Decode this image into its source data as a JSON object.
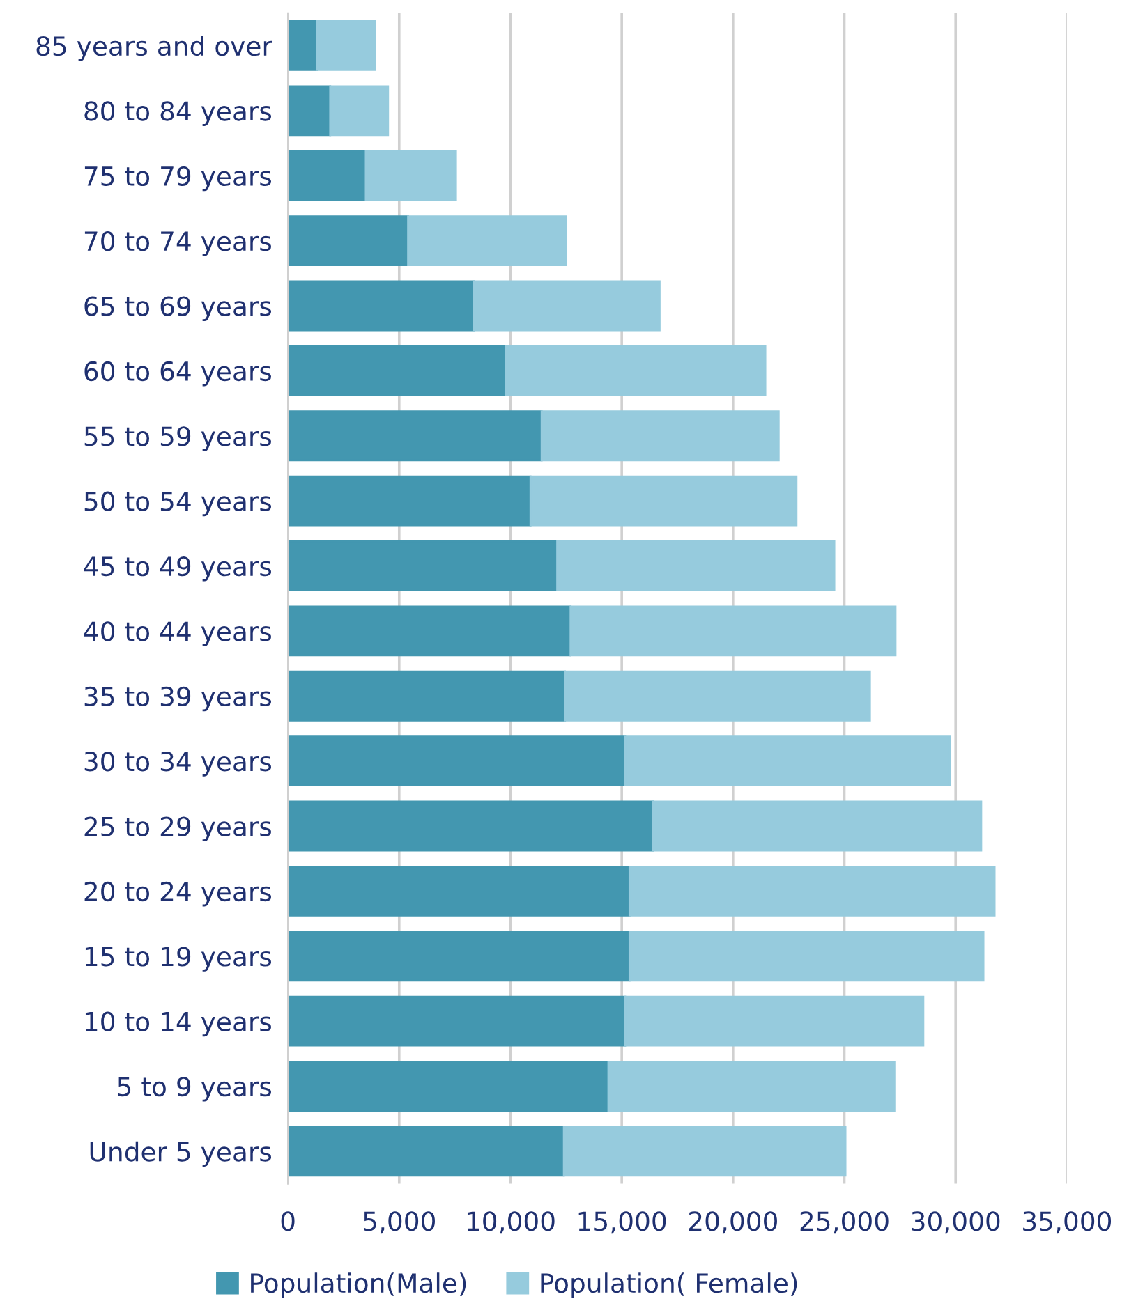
{
  "chart_data": {
    "type": "bar",
    "orientation": "horizontal",
    "stacked": true,
    "categories": [
      "85 years and over",
      "80 to 84 years",
      "75 to 79 years",
      "70 to 74 years",
      "65 to 69 years",
      "60 to 64 years",
      "55 to 59 years",
      "50 to 54 years",
      "45 to 49 years",
      "40 to 44 years",
      "35 to 39 years",
      "30 to 34 years",
      "25 to 29 years",
      "20 to 24 years",
      "15 to 19 years",
      "10 to 14 years",
      "5 to 9 years",
      "Under 5 years"
    ],
    "series": [
      {
        "name": "Population(Male)",
        "color": "#4397b0",
        "values": [
          1300,
          1900,
          3500,
          5400,
          8350,
          9800,
          11400,
          10900,
          12100,
          12700,
          12450,
          15150,
          16400,
          15350,
          15350,
          15150,
          14400,
          12400
        ]
      },
      {
        "name": "Population( Female)",
        "color": "#96cbdd",
        "values": [
          2600,
          2600,
          4050,
          7100,
          8350,
          11650,
          10650,
          11950,
          12450,
          14600,
          13700,
          14600,
          14750,
          16400,
          15900,
          13400,
          12850,
          12650
        ]
      }
    ],
    "xlim": [
      0,
      35000
    ],
    "xticks": [
      {
        "value": 0,
        "label": "0"
      },
      {
        "value": 5000,
        "label": "5,000"
      },
      {
        "value": 10000,
        "label": "10,000"
      },
      {
        "value": 15000,
        "label": "15,000"
      },
      {
        "value": 20000,
        "label": "20,000"
      },
      {
        "value": 25000,
        "label": "25,000"
      },
      {
        "value": 30000,
        "label": "30,000"
      },
      {
        "value": 35000,
        "label": "35,000"
      }
    ],
    "grid": "x",
    "legend": "bottom"
  }
}
